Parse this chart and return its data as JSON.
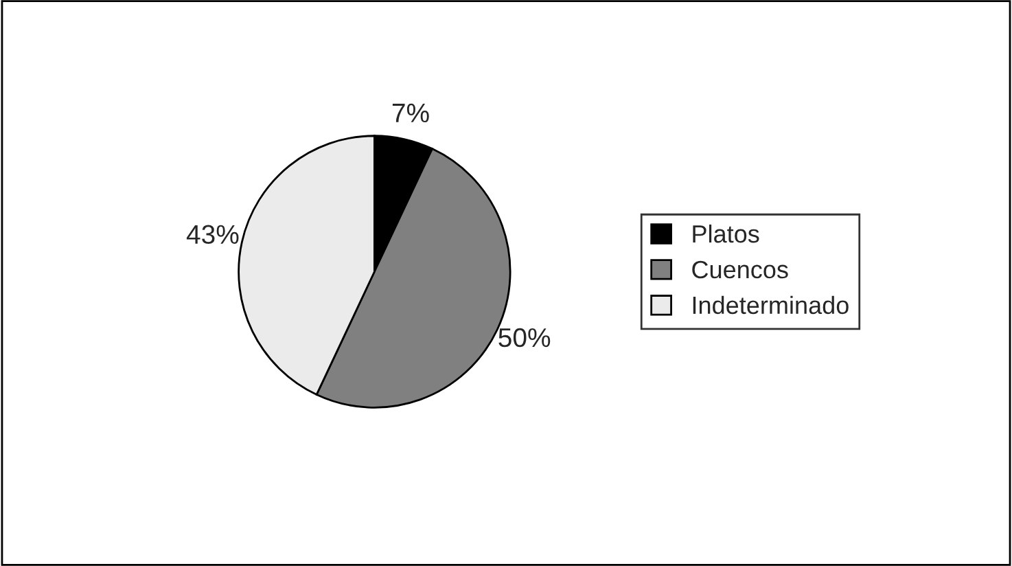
{
  "chart_data": {
    "type": "pie",
    "categories": [
      "Platos",
      "Cuencos",
      "Indeterminado"
    ],
    "values": [
      7,
      50,
      43
    ],
    "colors": [
      "#000000",
      "#808080",
      "#ebebeb"
    ],
    "value_labels": [
      "7%",
      "50%",
      "43%"
    ],
    "legend": "right"
  }
}
